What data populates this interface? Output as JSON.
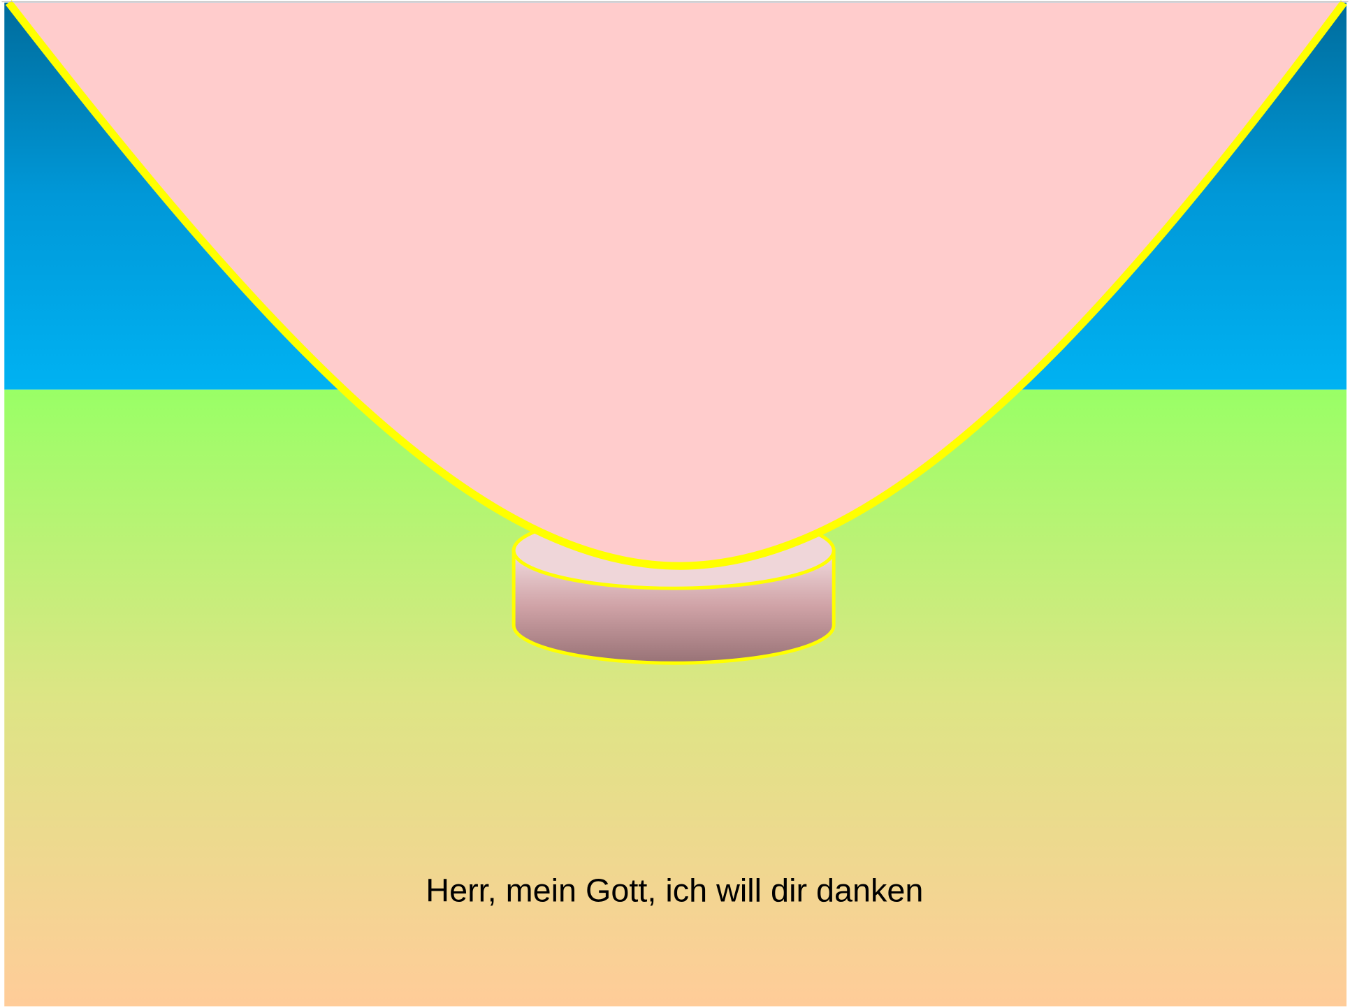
{
  "caption": "Herr, mein Gott, ich will dir danken"
}
